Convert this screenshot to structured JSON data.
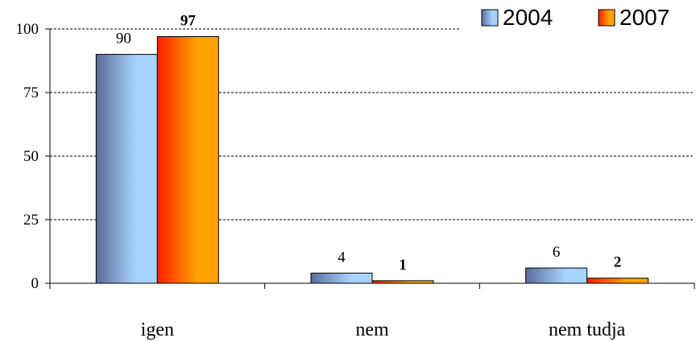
{
  "chart_data": {
    "type": "bar",
    "categories": [
      "igen",
      "nem",
      "nem tudja"
    ],
    "series": [
      {
        "name": "2004",
        "values": [
          90,
          4,
          6
        ],
        "labels": [
          "90",
          "4",
          "6"
        ],
        "label_bold": false
      },
      {
        "name": "2007",
        "values": [
          97,
          1,
          2
        ],
        "labels": [
          "97",
          "1",
          "2"
        ],
        "label_bold": true
      }
    ],
    "ylim": [
      0,
      100
    ],
    "yticks": [
      0,
      25,
      50,
      75,
      100
    ],
    "ytick_labels": [
      "0",
      "25",
      "50",
      "75",
      "100"
    ],
    "grid": true,
    "legend_position": "top-right",
    "title": "",
    "xlabel": "",
    "ylabel": "",
    "colors": {
      "2004": {
        "dark": "#5b6c9c",
        "light": "#a7d3ff"
      },
      "2007": {
        "dark": "#ff1f00",
        "light": "#ffa200"
      }
    }
  }
}
